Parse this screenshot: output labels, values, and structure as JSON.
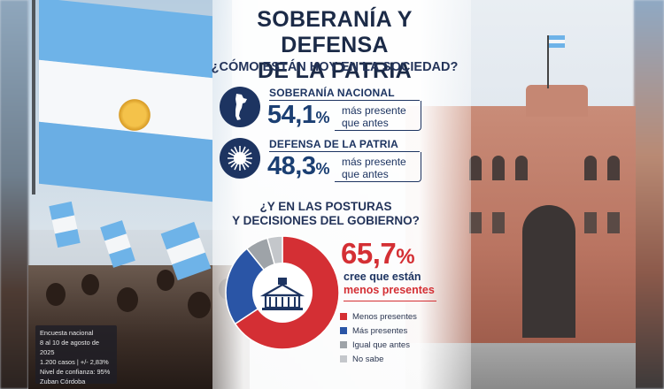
{
  "header": {
    "title_line1": "SOBERANÍA Y DEFENSA",
    "title_line2": "DE LA PATRIA",
    "subtitle": "¿CÓMO ESTÁN HOY EN LA SOCIEDAD?"
  },
  "indicators": [
    {
      "label": "SOBERANÍA NACIONAL",
      "value": "54,1",
      "unit": "%",
      "text": "más presente que antes",
      "icon": "argentina-map-icon"
    },
    {
      "label": "DEFENSA DE LA PATRIA",
      "value": "48,3",
      "unit": "%",
      "text": "más presente que antes",
      "icon": "sun-emblem-icon"
    }
  ],
  "question2": {
    "line1": "¿Y EN LAS POSTURAS",
    "line2": "Y DECISIONES DEL GOBIERNO?"
  },
  "highlight": {
    "value": "65,7",
    "unit": "%",
    "line1": "cree que están",
    "line2": "menos presentes"
  },
  "chart_data": {
    "type": "pie",
    "subtype": "donut",
    "title": "",
    "categories": [
      "Menos presentes",
      "Más presentes",
      "Igual que antes",
      "No sabe"
    ],
    "values": [
      65.7,
      23.5,
      6.5,
      4.3
    ],
    "colors": [
      "#d42f34",
      "#2a55a6",
      "#9ea3a8",
      "#c4c7cb"
    ],
    "legend_position": "right",
    "center_icon": "government-building-icon"
  },
  "footer": {
    "line1": "Encuesta nacional",
    "line2": "8 al 10 de agosto de 2025",
    "line3": "1.200 casos | +/- 2,83%",
    "line4": "Nivel de confianza: 95%",
    "line5": "Zuban Córdoba"
  }
}
